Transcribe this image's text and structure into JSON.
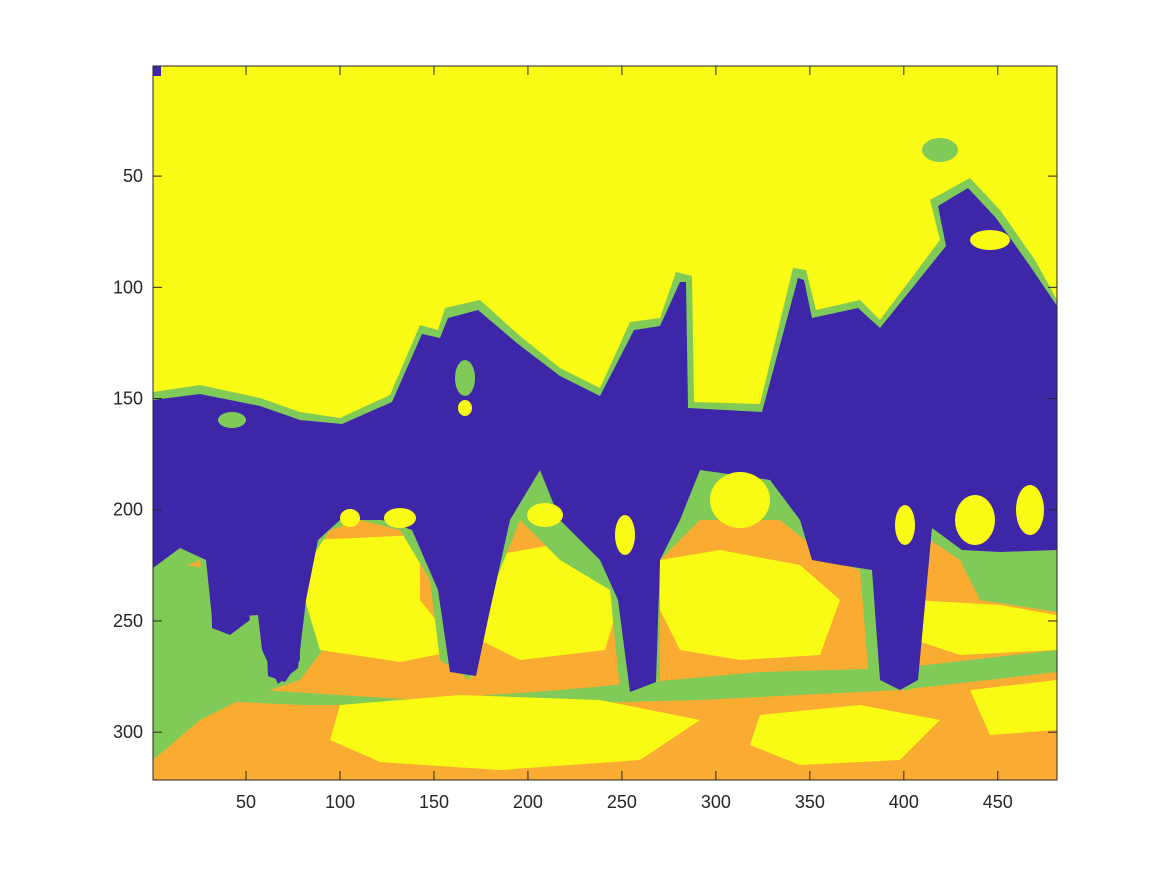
{
  "chart_data": {
    "type": "heatmap",
    "title": "",
    "xlabel": "",
    "ylabel": "",
    "xlim": [
      0.5,
      481.5
    ],
    "ylim": [
      0.5,
      321.5
    ],
    "y_reversed": true,
    "xticks": [
      50,
      100,
      150,
      200,
      250,
      300,
      350,
      400,
      450
    ],
    "yticks": [
      50,
      100,
      150,
      200,
      250,
      300
    ],
    "grid": false,
    "legend": "none",
    "colormap": [
      "#3e26a8",
      "#80cb58",
      "#f9ab32",
      "#f9fb15"
    ],
    "image_size": {
      "columns": 481,
      "rows": 321
    },
    "description_of_regions": "4-level segmentation: yellow sky background, dark blue/purple silhouettes of animals with riders, green edges, orange/yellow textured ground"
  }
}
